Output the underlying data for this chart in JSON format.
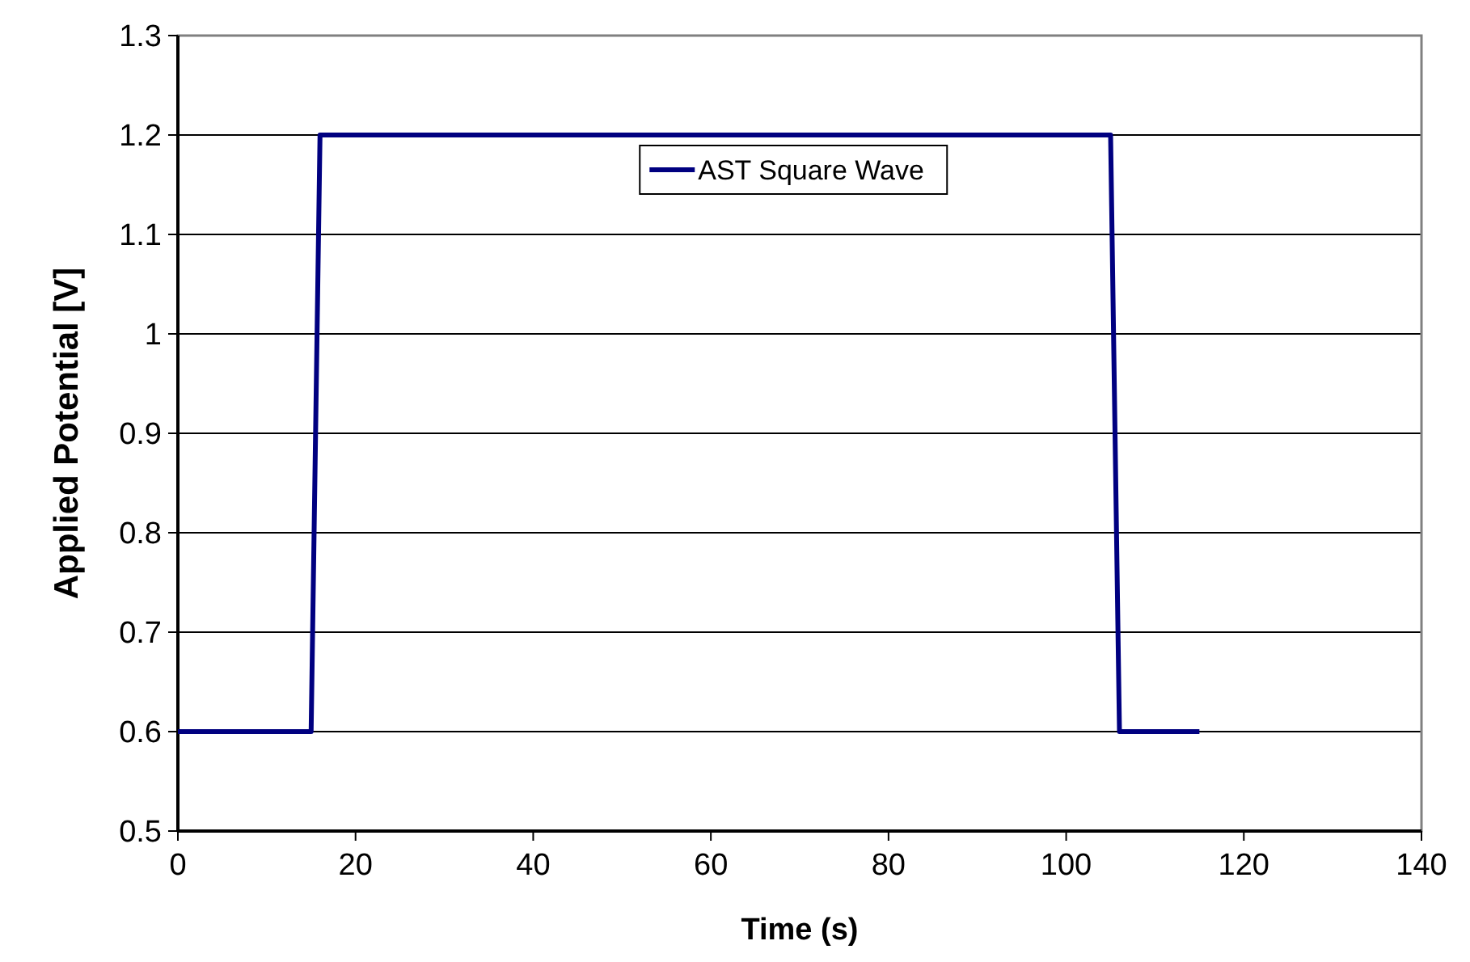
{
  "chart_data": {
    "type": "line",
    "xlabel": "Time (s)",
    "ylabel": "Applied Potential [V]",
    "series": [
      {
        "name": "AST Square Wave",
        "color": "#000080",
        "x": [
          0,
          15,
          16,
          105,
          106,
          115
        ],
        "values": [
          0.6,
          0.6,
          1.2,
          1.2,
          0.6,
          0.6
        ]
      }
    ],
    "xlim": [
      0,
      140
    ],
    "xticks": [
      0,
      20,
      40,
      60,
      80,
      100,
      120,
      140
    ],
    "ylim": [
      0.5,
      1.3
    ],
    "yticks": [
      0.5,
      0.6,
      0.7,
      0.8,
      0.9,
      {
        "value": 1,
        "label": "1"
      },
      1.1,
      1.2,
      1.3
    ],
    "grid": "y",
    "legend": "top",
    "marker": "none",
    "line_style": "solid"
  }
}
